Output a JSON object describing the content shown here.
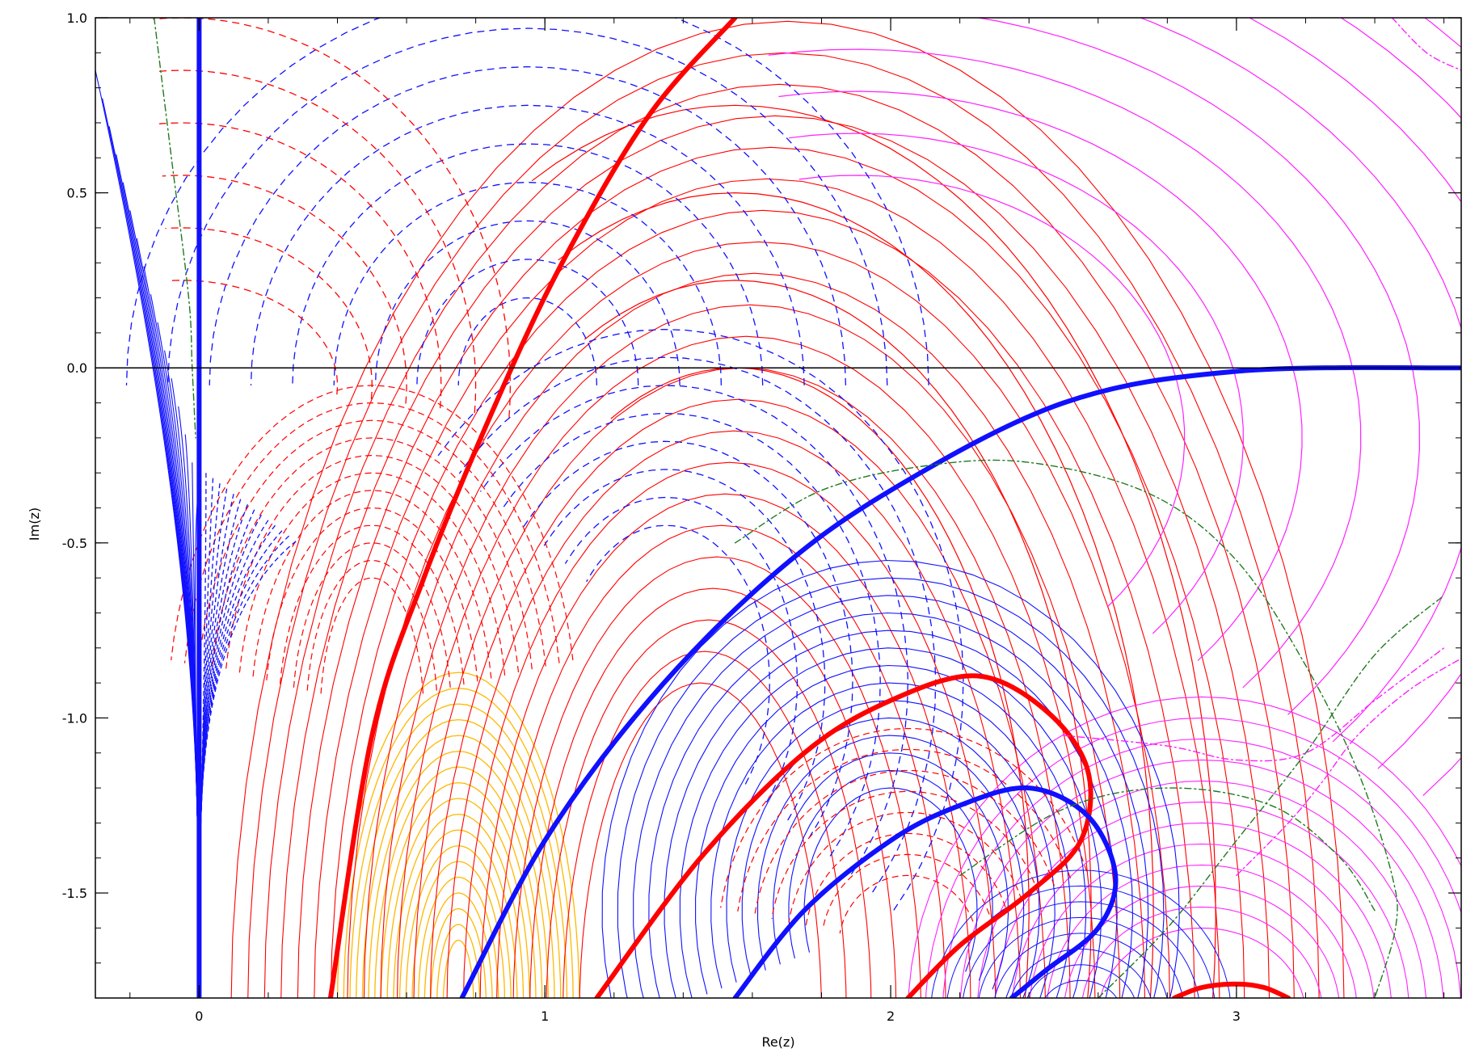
{
  "chart_data": {
    "type": "line",
    "title": "",
    "xlabel": "Re(z)",
    "ylabel": "Im(z)",
    "xlim": [
      -0.3,
      3.65
    ],
    "ylim": [
      -1.8,
      1.0
    ],
    "x_ticks": [
      0,
      1,
      2,
      3
    ],
    "x_tick_labels": [
      "0",
      "1",
      "2",
      "3"
    ],
    "y_ticks": [
      1.0,
      0.5,
      0.0,
      -0.5,
      -1.0,
      -1.5
    ],
    "y_tick_labels": [
      "1.0",
      "0.5",
      "0.0",
      "-0.5",
      "-1.0",
      "-1.5"
    ],
    "grid": false,
    "legend": "none",
    "colors": {
      "blue": "#1010ff",
      "red": "#ff0000",
      "magenta": "#ff20ff",
      "orange": "#ffb800",
      "green": "#207a20",
      "axis": "#000000"
    },
    "series": [
      {
        "style": "thick-blue",
        "points": [
          [
            0.0,
            1.0
          ],
          [
            0.0,
            0.5
          ],
          [
            0.0,
            0.0
          ],
          [
            0.0,
            -0.5
          ],
          [
            0.0,
            -1.0
          ],
          [
            0.0,
            -1.5
          ],
          [
            0.0,
            -1.8
          ]
        ]
      },
      {
        "style": "thick-red",
        "points": [
          [
            0.38,
            -1.8
          ],
          [
            0.5,
            -1.05
          ],
          [
            0.65,
            -0.6
          ],
          [
            0.85,
            -0.12
          ],
          [
            1.05,
            0.3
          ],
          [
            1.3,
            0.72
          ],
          [
            1.55,
            1.0
          ]
        ]
      },
      {
        "style": "thick-blue",
        "points": [
          [
            0.76,
            -1.8
          ],
          [
            1.0,
            -1.35
          ],
          [
            1.3,
            -0.95
          ],
          [
            1.65,
            -0.6
          ],
          [
            2.0,
            -0.35
          ],
          [
            2.5,
            -0.1
          ],
          [
            3.0,
            -0.01
          ],
          [
            3.65,
            0.0
          ]
        ]
      },
      {
        "style": "thick-red",
        "points": [
          [
            1.15,
            -1.8
          ],
          [
            1.45,
            -1.4
          ],
          [
            1.75,
            -1.1
          ],
          [
            2.0,
            -0.95
          ],
          [
            2.25,
            -0.88
          ],
          [
            2.45,
            -0.98
          ],
          [
            2.57,
            -1.15
          ],
          [
            2.55,
            -1.35
          ],
          [
            2.4,
            -1.5
          ],
          [
            2.2,
            -1.65
          ],
          [
            2.05,
            -1.8
          ]
        ]
      },
      {
        "style": "thick-blue",
        "points": [
          [
            1.55,
            -1.8
          ],
          [
            1.75,
            -1.55
          ],
          [
            2.0,
            -1.35
          ],
          [
            2.2,
            -1.25
          ],
          [
            2.4,
            -1.2
          ],
          [
            2.57,
            -1.28
          ],
          [
            2.65,
            -1.45
          ],
          [
            2.6,
            -1.6
          ],
          [
            2.45,
            -1.72
          ],
          [
            2.35,
            -1.8
          ]
        ]
      },
      {
        "style": "thick-red",
        "points": [
          [
            2.82,
            -1.8
          ],
          [
            2.9,
            -1.77
          ],
          [
            3.0,
            -1.76
          ],
          [
            3.08,
            -1.77
          ],
          [
            3.15,
            -1.8
          ]
        ]
      },
      {
        "style": "green-dashdot",
        "points": [
          [
            -0.13,
            1.0
          ],
          [
            -0.08,
            0.6
          ],
          [
            -0.03,
            0.2
          ],
          [
            -0.02,
            0.0
          ],
          [
            -0.01,
            -0.2
          ]
        ]
      },
      {
        "style": "green-dashdot",
        "points": [
          [
            1.55,
            -0.5
          ],
          [
            1.8,
            -0.35
          ],
          [
            2.1,
            -0.28
          ],
          [
            2.4,
            -0.27
          ],
          [
            2.75,
            -0.36
          ],
          [
            3.0,
            -0.55
          ],
          [
            3.2,
            -0.85
          ],
          [
            3.35,
            -1.15
          ],
          [
            3.45,
            -1.45
          ],
          [
            3.46,
            -1.6
          ],
          [
            3.4,
            -1.8
          ]
        ]
      },
      {
        "style": "green-dashdot",
        "points": [
          [
            2.2,
            -1.45
          ],
          [
            2.5,
            -1.26
          ],
          [
            2.8,
            -1.2
          ],
          [
            3.1,
            -1.25
          ],
          [
            3.3,
            -1.4
          ],
          [
            3.4,
            -1.55
          ]
        ]
      },
      {
        "style": "green-dashdot",
        "points": [
          [
            2.6,
            -1.8
          ],
          [
            2.8,
            -1.6
          ],
          [
            3.0,
            -1.35
          ],
          [
            3.2,
            -1.1
          ],
          [
            3.4,
            -0.82
          ],
          [
            3.6,
            -0.65
          ]
        ]
      },
      {
        "style": "magenta-dashdot",
        "points": [
          [
            3.45,
            1.0
          ],
          [
            3.55,
            0.9
          ],
          [
            3.65,
            0.85
          ]
        ]
      },
      {
        "style": "magenta-dashdot",
        "points": [
          [
            2.5,
            -1.05
          ],
          [
            2.8,
            -1.08
          ],
          [
            3.0,
            -1.12
          ],
          [
            3.2,
            -1.1
          ],
          [
            3.4,
            -0.95
          ],
          [
            3.6,
            -0.8
          ]
        ]
      },
      {
        "style": "magenta-dashdot",
        "points": [
          [
            3.0,
            -1.45
          ],
          [
            3.15,
            -1.3
          ],
          [
            3.25,
            -1.18
          ],
          [
            3.35,
            -1.05
          ],
          [
            3.5,
            -0.92
          ],
          [
            3.65,
            -0.83
          ]
        ]
      }
    ]
  }
}
